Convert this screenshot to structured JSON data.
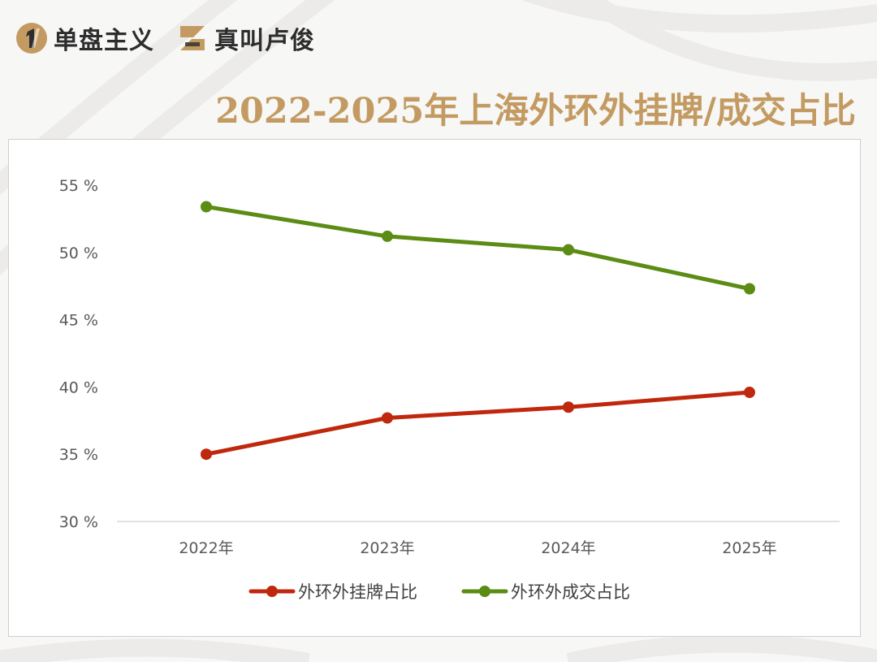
{
  "brands": [
    {
      "name": "单盘主义",
      "icon": "number-one-logo-icon",
      "color": "#c39b62"
    },
    {
      "name": "真叫卢俊",
      "icon": "letter-z-logo-icon",
      "color": "#c39b62"
    }
  ],
  "title": "2022-2025年上海外环外挂牌/成交占比",
  "colors": {
    "accent": "#c39b62",
    "listing": "#c0280e",
    "deal": "#5b8c14"
  },
  "chart_data": {
    "type": "line",
    "categories": [
      "2022年",
      "2023年",
      "2024年",
      "2025年"
    ],
    "series": [
      {
        "name": "外环外挂牌占比",
        "values": [
          35.0,
          37.7,
          38.5,
          39.6
        ],
        "color": "#c0280e"
      },
      {
        "name": "外环外成交占比",
        "values": [
          53.4,
          51.2,
          50.2,
          47.3
        ],
        "color": "#5b8c14"
      }
    ],
    "yticks": [
      "30 %",
      "35 %",
      "40 %",
      "45 %",
      "50 %",
      "55 %"
    ],
    "yticks_values": [
      30,
      35,
      40,
      45,
      50,
      55
    ],
    "ylim": [
      30,
      55
    ],
    "title": "",
    "xlabel": "",
    "ylabel": "",
    "legend_position": "bottom",
    "grid": false
  }
}
